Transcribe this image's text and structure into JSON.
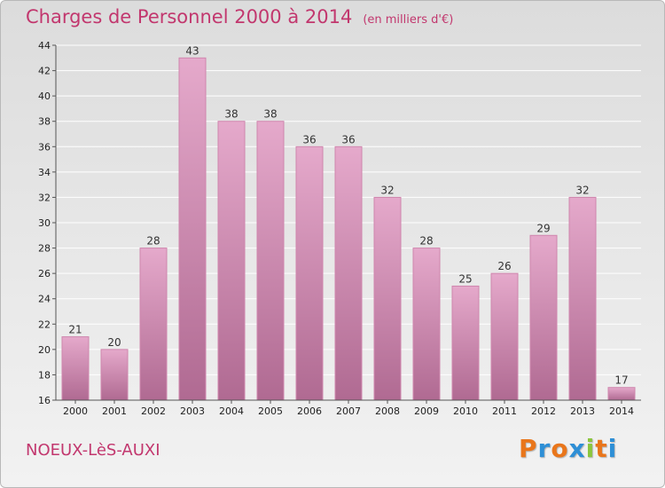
{
  "title": "Charges de Personnel 2000 à 2014",
  "unit_note": "(en milliers d'€)",
  "commune": "NOEUX-LèS-AUXI",
  "logo": {
    "letters": [
      "P",
      "r",
      "o",
      "x",
      "i",
      "t",
      "i"
    ],
    "colors": [
      "#e9761b",
      "#2e8fd6",
      "#e9761b",
      "#2e8fd6",
      "#8cc63e",
      "#e9761b",
      "#2e8fd6"
    ]
  },
  "colors": {
    "bar_top": "#e5a9cb",
    "bar_bottom": "#b06a92",
    "title": "#c2376e"
  },
  "chart_data": {
    "type": "bar",
    "categories": [
      "2000",
      "2001",
      "2002",
      "2003",
      "2004",
      "2005",
      "2006",
      "2007",
      "2008",
      "2009",
      "2010",
      "2011",
      "2012",
      "2013",
      "2014"
    ],
    "values": [
      21,
      20,
      28,
      43,
      38,
      38,
      36,
      36,
      32,
      28,
      25,
      26,
      29,
      32,
      17
    ],
    "ylim": [
      16,
      44
    ],
    "yticks": [
      16,
      18,
      20,
      22,
      24,
      26,
      28,
      30,
      32,
      34,
      36,
      38,
      40,
      42,
      44
    ],
    "grid": true,
    "data_labels": true
  }
}
